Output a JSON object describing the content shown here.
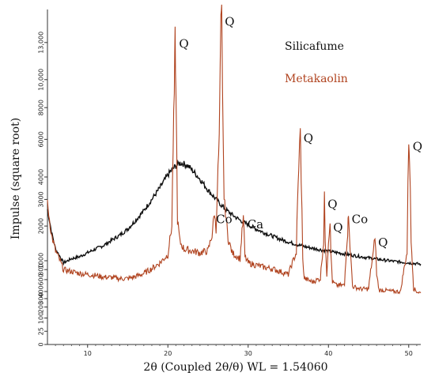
{
  "chart_data": {
    "type": "line",
    "xlabel": "2θ (Coupled 2θ/θ) WL = 1.54060",
    "ylabel": "Impulse (square root)",
    "xlim": [
      5,
      51.5
    ],
    "x_ticks": [
      "10",
      "20",
      "30",
      "40",
      "50"
    ],
    "y_ticks": [
      "0",
      "25",
      "100",
      "200",
      "300",
      "400",
      "600",
      "800",
      "1000",
      "2000",
      "3000",
      "4000",
      "6000",
      "8000",
      "10,000",
      "13,000"
    ],
    "y_scale": "square root",
    "grid": false,
    "legend_position": "top-right",
    "series": [
      {
        "name": "Silicafume",
        "color": "#111111",
        "x": [
          5.0,
          5.5,
          6.0,
          7.0,
          8.0,
          9.0,
          10.0,
          11.0,
          12.0,
          13.0,
          14.0,
          15.0,
          16.0,
          17.0,
          18.0,
          19.0,
          19.5,
          20.0,
          20.5,
          21.0,
          21.5,
          22.0,
          22.5,
          23.0,
          24.0,
          25.0,
          26.0,
          27.0,
          28.0,
          29.0,
          30.0,
          31.0,
          32.0,
          33.0,
          34.0,
          35.0,
          36.0,
          37.0,
          38.0,
          40.0,
          42.0,
          44.0,
          46.0,
          48.0,
          50.0,
          51.5
        ],
        "y": [
          2600,
          1800,
          1300,
          950,
          1050,
          1100,
          1200,
          1300,
          1400,
          1550,
          1700,
          1900,
          2200,
          2550,
          3000,
          3500,
          3800,
          4100,
          4350,
          4550,
          4700,
          4650,
          4550,
          4350,
          3900,
          3400,
          3000,
          2650,
          2400,
          2200,
          2050,
          1900,
          1780,
          1680,
          1580,
          1500,
          1430,
          1370,
          1320,
          1240,
          1170,
          1100,
          1040,
          990,
          950,
          920
        ]
      },
      {
        "name": "Metakaolin",
        "color": "#b0431f",
        "x": [
          5.0,
          5.5,
          6.0,
          7.0,
          8.0,
          9.0,
          10.0,
          11.0,
          12.0,
          13.0,
          14.0,
          15.0,
          16.0,
          17.0,
          18.0,
          19.0,
          20.0,
          20.5,
          20.8,
          20.9,
          21.0,
          21.2,
          21.5,
          22.0,
          23.0,
          24.0,
          25.0,
          25.5,
          25.8,
          26.0,
          26.4,
          26.6,
          26.7,
          26.8,
          27.0,
          27.5,
          28.0,
          29.0,
          29.4,
          29.6,
          30.0,
          31.0,
          32.0,
          33.0,
          34.0,
          35.0,
          36.0,
          36.3,
          36.5,
          36.6,
          36.8,
          37.0,
          38.0,
          39.0,
          39.4,
          39.5,
          39.6,
          39.8,
          40.0,
          40.2,
          40.3,
          40.5,
          41.0,
          42.0,
          42.4,
          42.5,
          42.7,
          43.0,
          44.0,
          45.0,
          45.6,
          45.8,
          46.0,
          46.3,
          47.0,
          48.0,
          49.0,
          49.8,
          50.0,
          50.1,
          50.3,
          50.6,
          51.0,
          51.5
        ],
        "y": [
          2800,
          1700,
          1250,
          800,
          760,
          720,
          700,
          680,
          650,
          640,
          620,
          620,
          660,
          720,
          820,
          950,
          1150,
          2000,
          9000,
          13500,
          9000,
          2200,
          1500,
          1300,
          1250,
          1200,
          1250,
          1700,
          2500,
          1800,
          6000,
          14500,
          15500,
          9000,
          3000,
          1600,
          1200,
          1050,
          2300,
          1100,
          950,
          900,
          850,
          820,
          760,
          700,
          1200,
          4500,
          6500,
          4000,
          1000,
          620,
          560,
          620,
          1500,
          3100,
          1600,
          700,
          1500,
          2200,
          1200,
          560,
          500,
          500,
          1800,
          2500,
          1300,
          480,
          440,
          440,
          1200,
          1700,
          700,
          420,
          420,
          400,
          400,
          1200,
          6000,
          5000,
          1500,
          450,
          400,
          380
        ]
      }
    ],
    "annotations": [
      {
        "text": "Q",
        "x": 21.0,
        "y": 13500
      },
      {
        "text": "Q",
        "x": 26.7,
        "y": 15500
      },
      {
        "text": "Co",
        "x": 25.6,
        "y": 2500
      },
      {
        "text": "Ca",
        "x": 29.5,
        "y": 2300
      },
      {
        "text": "Q",
        "x": 36.5,
        "y": 6500
      },
      {
        "text": "Q",
        "x": 39.5,
        "y": 3100
      },
      {
        "text": "Q",
        "x": 40.2,
        "y": 2200
      },
      {
        "text": "Co",
        "x": 42.5,
        "y": 2500
      },
      {
        "text": "Q",
        "x": 45.8,
        "y": 1700
      },
      {
        "text": "Q",
        "x": 50.1,
        "y": 6000
      }
    ]
  }
}
